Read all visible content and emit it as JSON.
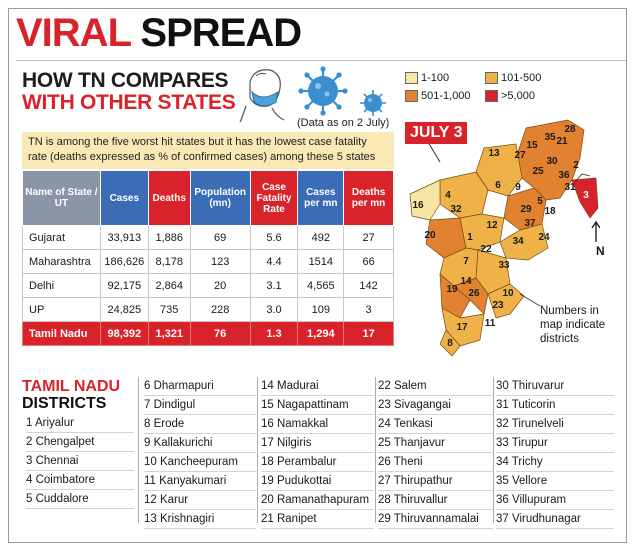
{
  "headline": {
    "part1": "VIRAL",
    "part2": "SPREAD"
  },
  "subhead": {
    "line1": "HOW TN COMPARES",
    "line2": "WITH OTHER STATES"
  },
  "data_note": "(Data as on 2 July)",
  "intro_text": "TN is among the five worst hit states but it has the lowest case fatality rate (deaths expressed as % of confirmed cases) among these 5 states",
  "table": {
    "headers": {
      "name": "Name of State / UT",
      "cases": "Cases",
      "deaths": "Deaths",
      "population": "Population (mn)",
      "cfr": "Case Fatality Rate",
      "cases_per_mn": "Cases per mn",
      "deaths_per_mn": "Deaths per mn"
    },
    "rows": [
      {
        "name": "Gujarat",
        "cases": "33,913",
        "deaths": "1,886",
        "population": "69",
        "cfr": "5.6",
        "cases_per_mn": "492",
        "deaths_per_mn": "27"
      },
      {
        "name": "Maharashtra",
        "cases": "186,626",
        "deaths": "8,178",
        "population": "123",
        "cfr": "4.4",
        "cases_per_mn": "1514",
        "deaths_per_mn": "66"
      },
      {
        "name": "Delhi",
        "cases": "92,175",
        "deaths": "2,864",
        "population": "20",
        "cfr": "3.1",
        "cases_per_mn": "4,565",
        "deaths_per_mn": "142"
      },
      {
        "name": "UP",
        "cases": "24,825",
        "deaths": "735",
        "population": "228",
        "cfr": "3.0",
        "cases_per_mn": "109",
        "deaths_per_mn": "3"
      },
      {
        "name": "Tamil Nadu",
        "cases": "98,392",
        "deaths": "1,321",
        "population": "76",
        "cfr": "1.3",
        "cases_per_mn": "1,294",
        "deaths_per_mn": "17"
      }
    ]
  },
  "map_legend": {
    "items": [
      {
        "label": "1-100",
        "color": "#f8e7a4"
      },
      {
        "label": "101-500",
        "color": "#efb248"
      },
      {
        "label": "501-1,000",
        "color": "#e28230"
      },
      {
        "label": ">5,000",
        "color": "#d8232a"
      }
    ]
  },
  "map": {
    "date_label": "JULY 3",
    "north": "N",
    "note": "Numbers in map indicate districts",
    "district_numbers": [
      "28",
      "35",
      "21",
      "15",
      "3",
      "2",
      "13",
      "27",
      "30",
      "36",
      "25",
      "31",
      "9",
      "4",
      "6",
      "18",
      "29",
      "37",
      "12",
      "34",
      "24",
      "32",
      "22",
      "33",
      "7",
      "19",
      "10",
      "26",
      "14",
      "23",
      "11",
      "17",
      "8",
      "16",
      "20",
      "1",
      "5"
    ]
  },
  "districts": {
    "title_line1": "TAMIL NADU",
    "title_line2": "DISTRICTS",
    "col1": [
      "1 Ariyalur",
      "2 Chengalpet",
      "3 Chennai",
      "4 Coimbatore",
      "5 Cuddalore"
    ],
    "col2": [
      "6 Dharmapuri",
      "7 Dindigul",
      "8 Erode",
      "9 Kallakurichi",
      "10 Kancheepuram",
      "11 Kanyakumari",
      "12 Karur",
      "13 Krishnagiri"
    ],
    "col3": [
      "14 Madurai",
      "15 Nagapattinam",
      "16 Namakkal",
      "17 Nilgiris",
      "18 Perambalur",
      "19 Pudukottai",
      "20 Ramanathapuram",
      "21 Ranipet"
    ],
    "col4": [
      "22 Salem",
      "23 Sivagangai",
      "24 Tenkasi",
      "25 Thanjavur",
      "26 Theni",
      "27 Thirupathur",
      "28 Thiruvallur",
      "29 Thiruvannamalai"
    ],
    "col5": [
      "30 Thiruvarur",
      "31 Tuticorin",
      "32 Tirunelveli",
      "33 Tirupur",
      "34 Trichy",
      "35 Vellore",
      "36 Villupuram",
      "37 Virudhunagar"
    ]
  }
}
